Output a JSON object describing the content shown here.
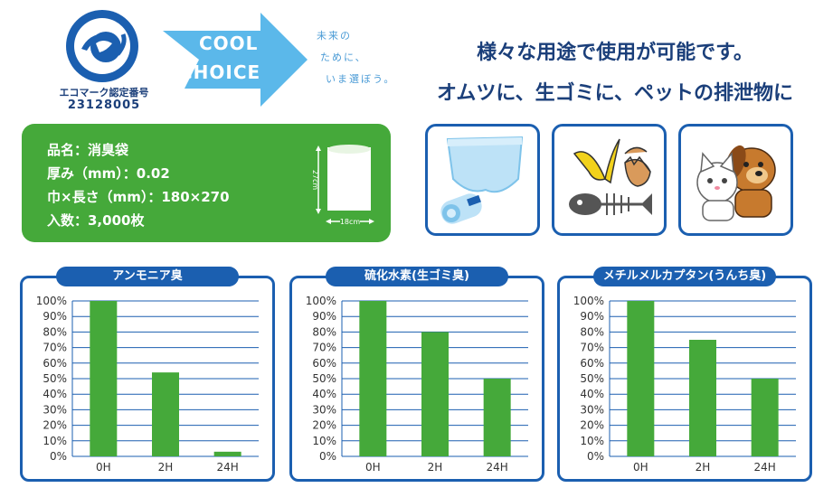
{
  "eco_mark": {
    "label": "エコマーク認定番号",
    "number": "23128005"
  },
  "cool_choice": {
    "line1": "COOL",
    "line2": "CHOICE",
    "tagline": [
      "未来の",
      "ために、",
      "いま選ぼう。"
    ],
    "color": "#5bb8ea"
  },
  "headline": {
    "line1": "様々な用途で使用が可能です。",
    "line2": "オムツに、生ゴミに、ペットの排泄物に"
  },
  "spec": {
    "name": "品名：消臭袋",
    "thickness": "厚み（mm）：0.02",
    "size": "巾×長さ（mm）：180×270",
    "quantity": "入数：3,000枚",
    "bag_height_label": "27cm",
    "bag_width_label": "18cm"
  },
  "uses": [
    {
      "icon": "diaper-icon"
    },
    {
      "icon": "food-waste-icon"
    },
    {
      "icon": "pets-icon"
    }
  ],
  "colors": {
    "accent": "#1b5fb0",
    "bar": "#45a93a",
    "spec_bg": "#45a93a",
    "navy": "#1b3f7a"
  },
  "chart_data": [
    {
      "type": "bar",
      "title": "アンモニア臭",
      "categories": [
        "0H",
        "2H",
        "24H"
      ],
      "values": [
        100,
        54,
        3
      ],
      "ylim": [
        0,
        100
      ],
      "yticks": [
        "0%",
        "10%",
        "20%",
        "30%",
        "40%",
        "50%",
        "60%",
        "70%",
        "80%",
        "90%",
        "100%"
      ],
      "grid": true
    },
    {
      "type": "bar",
      "title": "硫化水素(生ゴミ臭)",
      "categories": [
        "0H",
        "2H",
        "24H"
      ],
      "values": [
        100,
        80,
        50
      ],
      "ylim": [
        0,
        100
      ],
      "yticks": [
        "0%",
        "10%",
        "20%",
        "30%",
        "40%",
        "50%",
        "60%",
        "70%",
        "80%",
        "90%",
        "100%"
      ],
      "grid": true
    },
    {
      "type": "bar",
      "title": "メチルメルカプタン(うんち臭)",
      "categories": [
        "0H",
        "2H",
        "24H"
      ],
      "values": [
        100,
        75,
        50
      ],
      "ylim": [
        0,
        100
      ],
      "yticks": [
        "0%",
        "10%",
        "20%",
        "30%",
        "40%",
        "50%",
        "60%",
        "70%",
        "80%",
        "90%",
        "100%"
      ],
      "grid": true
    }
  ]
}
